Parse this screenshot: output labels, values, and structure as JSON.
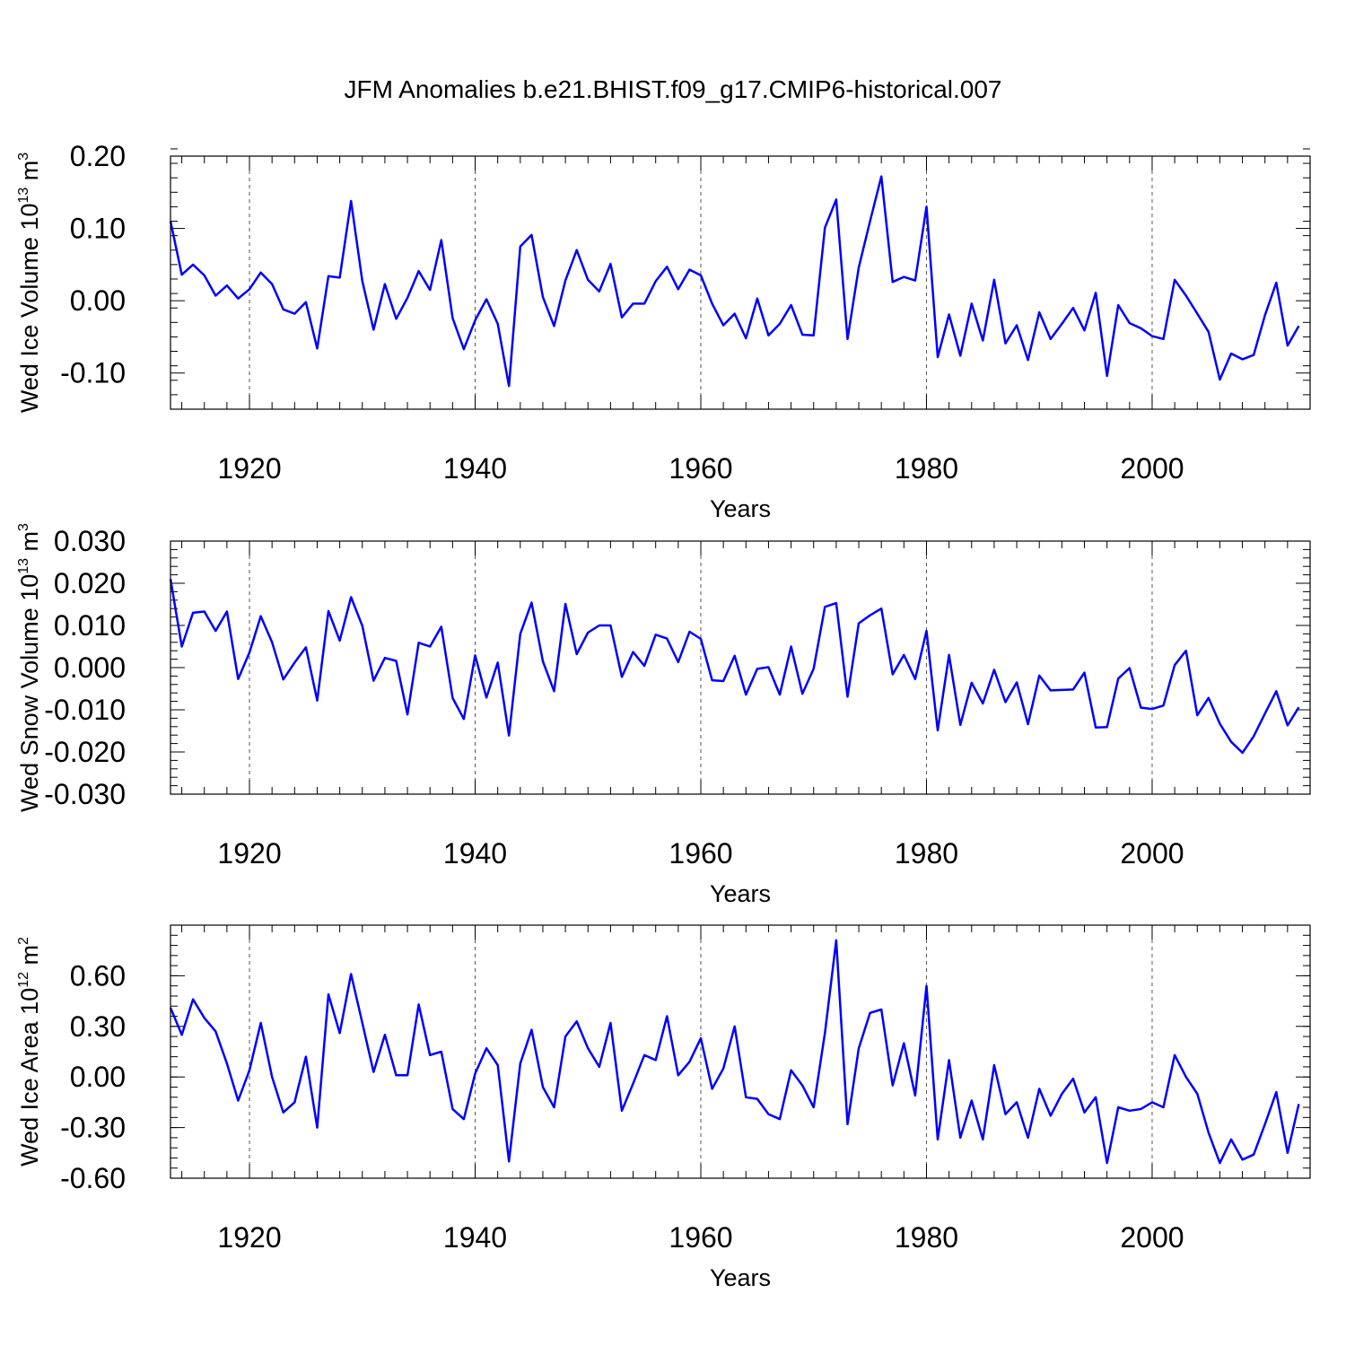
{
  "figure": {
    "title": "JFM Anomalies b.e21.BHIST.f09_g17.CMIP6-historical.007",
    "line_color": "#0000ff"
  },
  "chart_data": [
    {
      "type": "line",
      "title": "",
      "xlabel": "Years",
      "ylabel": "Wed Ice Volume 10",
      "ylabel_exp": "13",
      "ylabel_unit": "m",
      "ylabel_unit_exp": "3",
      "xlim": [
        1913,
        2014
      ],
      "ylim": [
        -0.15,
        0.2
      ],
      "xticks": [
        1920,
        1940,
        1960,
        1980,
        2000
      ],
      "xtick_labels": [
        "1920",
        "1940",
        "1960",
        "1980",
        "2000"
      ],
      "yticks": [
        0.2,
        0.1,
        0.0,
        -0.1
      ],
      "ytick_labels": [
        "0.20",
        "0.10",
        "0.00",
        "-0.10"
      ],
      "grid": "vertical dashed at x ticks",
      "x_start": 1913,
      "values": [
        0.11,
        0.036,
        0.05,
        0.035,
        0.007,
        0.021,
        0.003,
        0.016,
        0.039,
        0.023,
        -0.012,
        -0.018,
        -0.002,
        -0.066,
        0.034,
        0.032,
        0.138,
        0.027,
        -0.04,
        0.023,
        -0.025,
        0.004,
        0.041,
        0.015,
        0.084,
        -0.024,
        -0.067,
        -0.027,
        0.002,
        -0.032,
        -0.118,
        0.075,
        0.091,
        0.005,
        -0.035,
        0.028,
        0.07,
        0.029,
        0.013,
        0.051,
        -0.023,
        -0.004,
        -0.004,
        0.027,
        0.047,
        0.016,
        0.043,
        0.035,
        -0.004,
        -0.034,
        -0.018,
        -0.052,
        0.003,
        -0.048,
        -0.032,
        -0.006,
        -0.047,
        -0.048,
        0.101,
        0.14,
        -0.053,
        0.046,
        0.11,
        0.172,
        0.026,
        0.033,
        0.028,
        0.13,
        -0.078,
        -0.019,
        -0.076,
        -0.004,
        -0.055,
        0.029,
        -0.059,
        -0.034,
        -0.082,
        -0.016,
        -0.053,
        -0.032,
        -0.01,
        -0.041,
        0.011,
        -0.104,
        -0.006,
        -0.031,
        -0.038,
        -0.049,
        -0.053,
        0.029,
        0.007,
        -0.018,
        -0.043,
        -0.109,
        -0.073,
        -0.081,
        -0.075,
        -0.02,
        0.025,
        -0.062,
        -0.035
      ]
    },
    {
      "type": "line",
      "title": "",
      "xlabel": "Years",
      "ylabel": "Wed Snow Volume 10",
      "ylabel_exp": "13",
      "ylabel_unit": "m",
      "ylabel_unit_exp": "3",
      "xlim": [
        1913,
        2014
      ],
      "ylim": [
        -0.03,
        0.03
      ],
      "xticks": [
        1920,
        1940,
        1960,
        1980,
        2000
      ],
      "xtick_labels": [
        "1920",
        "1940",
        "1960",
        "1980",
        "2000"
      ],
      "yticks": [
        0.03,
        0.02,
        0.01,
        0.0,
        -0.01,
        -0.02,
        -0.03
      ],
      "ytick_labels": [
        "0.030",
        "0.020",
        "0.010",
        "0.000",
        "-0.010",
        "-0.020",
        "-0.030"
      ],
      "grid": "vertical dashed at x ticks",
      "x_start": 1913,
      "values": [
        0.021,
        0.005,
        0.013,
        0.0133,
        0.0087,
        0.0133,
        -0.0027,
        0.0036,
        0.0122,
        0.006,
        -0.0028,
        0.0012,
        0.0048,
        -0.0078,
        0.0134,
        0.0064,
        0.0167,
        0.0099,
        -0.0031,
        0.0023,
        0.0016,
        -0.0111,
        0.0059,
        0.005,
        0.0097,
        -0.0072,
        -0.0122,
        0.0029,
        -0.0071,
        0.0012,
        -0.0161,
        0.008,
        0.0154,
        0.0015,
        -0.0056,
        0.0151,
        0.0032,
        0.0083,
        0.01,
        0.01,
        -0.0022,
        0.0037,
        0.0004,
        0.0078,
        0.0069,
        0.0013,
        0.0085,
        0.0068,
        -0.003,
        -0.0032,
        0.0028,
        -0.0064,
        -0.0003,
        0.0001,
        -0.0064,
        0.005,
        -0.0062,
        -0.0003,
        0.0144,
        0.0153,
        -0.0069,
        0.0105,
        0.0124,
        0.014,
        -0.0016,
        0.003,
        -0.0027,
        0.0087,
        -0.0149,
        0.003,
        -0.0136,
        -0.0036,
        -0.0085,
        -0.0005,
        -0.0082,
        -0.0035,
        -0.0134,
        -0.0019,
        -0.0054,
        -0.0053,
        -0.0052,
        -0.0012,
        -0.0142,
        -0.0141,
        -0.0026,
        -0.0001,
        -0.0095,
        -0.0098,
        -0.009,
        0.0006,
        0.004,
        -0.0113,
        -0.0072,
        -0.0133,
        -0.0176,
        -0.0202,
        -0.0163,
        -0.0109,
        -0.0056,
        -0.0137,
        -0.0094
      ]
    },
    {
      "type": "line",
      "title": "",
      "xlabel": "Years",
      "ylabel": "Wed Ice Area 10",
      "ylabel_exp": "12",
      "ylabel_unit": "m",
      "ylabel_unit_exp": "2",
      "xlim": [
        1913,
        2014
      ],
      "ylim": [
        -0.6,
        0.9
      ],
      "xticks": [
        1920,
        1940,
        1960,
        1980,
        2000
      ],
      "xtick_labels": [
        "1920",
        "1940",
        "1960",
        "1980",
        "2000"
      ],
      "yticks": [
        0.6,
        0.3,
        0.0,
        -0.3,
        -0.6
      ],
      "ytick_labels": [
        "0.60",
        "0.30",
        "0.00",
        "-0.30",
        "-0.60"
      ],
      "grid": "vertical dashed at x ticks",
      "x_start": 1913,
      "values": [
        0.41,
        0.25,
        0.46,
        0.35,
        0.27,
        0.08,
        -0.14,
        0.04,
        0.32,
        0.0,
        -0.21,
        -0.15,
        0.12,
        -0.3,
        0.49,
        0.26,
        0.61,
        0.32,
        0.03,
        0.25,
        0.01,
        0.01,
        0.43,
        0.13,
        0.15,
        -0.19,
        -0.25,
        0.02,
        0.17,
        0.07,
        -0.5,
        0.08,
        0.28,
        -0.06,
        -0.18,
        0.24,
        0.33,
        0.17,
        0.06,
        0.32,
        -0.2,
        -0.04,
        0.13,
        0.1,
        0.36,
        0.01,
        0.09,
        0.23,
        -0.07,
        0.05,
        0.3,
        -0.12,
        -0.13,
        -0.22,
        -0.25,
        0.04,
        -0.05,
        -0.18,
        0.26,
        0.81,
        -0.28,
        0.17,
        0.38,
        0.4,
        -0.05,
        0.2,
        -0.11,
        0.54,
        -0.37,
        0.1,
        -0.36,
        -0.14,
        -0.37,
        0.07,
        -0.22,
        -0.15,
        -0.36,
        -0.07,
        -0.23,
        -0.1,
        -0.01,
        -0.21,
        -0.12,
        -0.51,
        -0.18,
        -0.2,
        -0.19,
        -0.15,
        -0.18,
        0.13,
        0.0,
        -0.1,
        -0.33,
        -0.51,
        -0.37,
        -0.49,
        -0.46,
        -0.28,
        -0.09,
        -0.45,
        -0.16
      ]
    }
  ]
}
